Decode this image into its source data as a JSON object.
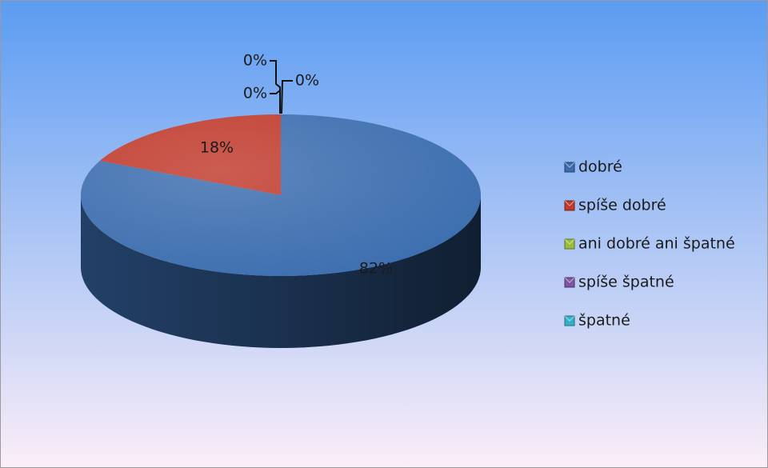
{
  "chart_data": {
    "type": "pie",
    "three_d": true,
    "title": "",
    "labels": [
      "dobré",
      "spíše dobré",
      "ani dobré ani špatné",
      "spíše špatné",
      "špatné"
    ],
    "values": [
      82,
      18,
      0,
      0,
      0
    ],
    "data_labels": [
      "82%",
      "18%",
      "0%",
      "0%",
      "0%"
    ],
    "colors": [
      "#3a6cae",
      "#c0392b",
      "#9bbb3c",
      "#7d55a3",
      "#36b0c8"
    ],
    "legend_position": "right",
    "grid": false
  },
  "background": {
    "gradient_top": "#5b9cf2",
    "gradient_bottom": "#fbeef8"
  }
}
